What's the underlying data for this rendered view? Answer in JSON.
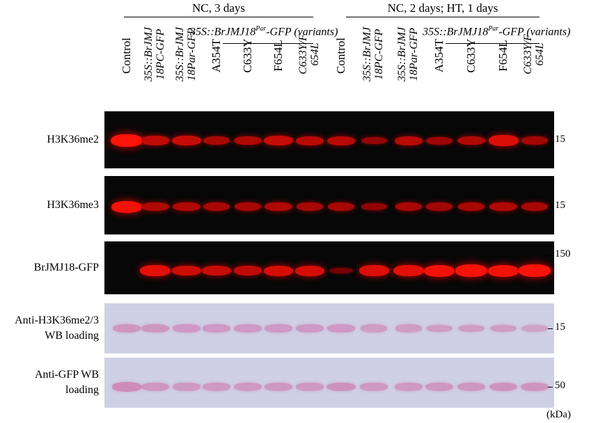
{
  "groups": [
    {
      "label": "NC, 3 days",
      "subtitle_main": "35S::BrJMJ18",
      "subtitle_sup": "Par",
      "subtitle_rest": "-GFP (variants)"
    },
    {
      "label": "NC, 2 days; HT, 1 days",
      "subtitle_main": "35S::BrJMJ18",
      "subtitle_sup": "Par",
      "subtitle_rest": "-GFP (variants)"
    }
  ],
  "lanes": [
    {
      "l1": "Control",
      "l2": ""
    },
    {
      "l1": "35S::BrJMJ",
      "l2": "18PC-GFP"
    },
    {
      "l1": "35S::BrJMJ",
      "l2": "18Par-GFP"
    },
    {
      "l1": "A354T",
      "l2": ""
    },
    {
      "l1": "C633Y",
      "l2": ""
    },
    {
      "l1": "F654L",
      "l2": ""
    },
    {
      "l1": "C633Y/F",
      "l2": "654L"
    },
    {
      "l1": "Control",
      "l2": ""
    },
    {
      "l1": "35S::BrJMJ",
      "l2": "18PC-GFP"
    },
    {
      "l1": "35S::BrJMJ",
      "l2": "18Par-GFP"
    },
    {
      "l1": "A354T",
      "l2": ""
    },
    {
      "l1": "C633Y",
      "l2": ""
    },
    {
      "l1": "F654L",
      "l2": ""
    },
    {
      "l1": "C633Y/F",
      "l2": "654L"
    }
  ],
  "panels": [
    {
      "label1": "H3K36me2",
      "label2": "",
      "marker": "15",
      "style": "dark",
      "intensity": [
        1.0,
        0.55,
        0.6,
        0.4,
        0.45,
        0.6,
        0.5,
        0.5,
        0.25,
        0.5,
        0.3,
        0.45,
        0.75,
        0.35
      ]
    },
    {
      "label1": "H3K36me3",
      "label2": "",
      "marker": "15",
      "style": "dark",
      "intensity": [
        0.9,
        0.45,
        0.45,
        0.4,
        0.4,
        0.45,
        0.4,
        0.4,
        0.25,
        0.4,
        0.35,
        0.4,
        0.45,
        0.4
      ]
    },
    {
      "label1": "BrJMJ18-GFP",
      "label2": "",
      "marker": "150",
      "style": "dark",
      "intensity": [
        0.0,
        0.8,
        0.65,
        0.6,
        0.55,
        0.7,
        0.7,
        0.05,
        0.75,
        0.8,
        0.9,
        0.95,
        0.9,
        0.95
      ]
    },
    {
      "label1": "Anti-H3K36me2/3",
      "label2": "WB loading",
      "marker": "15",
      "style": "light",
      "intensity": [
        0.5,
        0.5,
        0.45,
        0.45,
        0.45,
        0.45,
        0.45,
        0.45,
        0.4,
        0.4,
        0.35,
        0.35,
        0.35,
        0.3
      ]
    },
    {
      "label1": "Anti-GFP WB",
      "label2": "loading",
      "marker": "50",
      "style": "light",
      "intensity": [
        0.7,
        0.5,
        0.45,
        0.45,
        0.45,
        0.5,
        0.45,
        0.6,
        0.45,
        0.45,
        0.5,
        0.5,
        0.55,
        0.55
      ]
    }
  ],
  "unit_label": "(kDa)"
}
